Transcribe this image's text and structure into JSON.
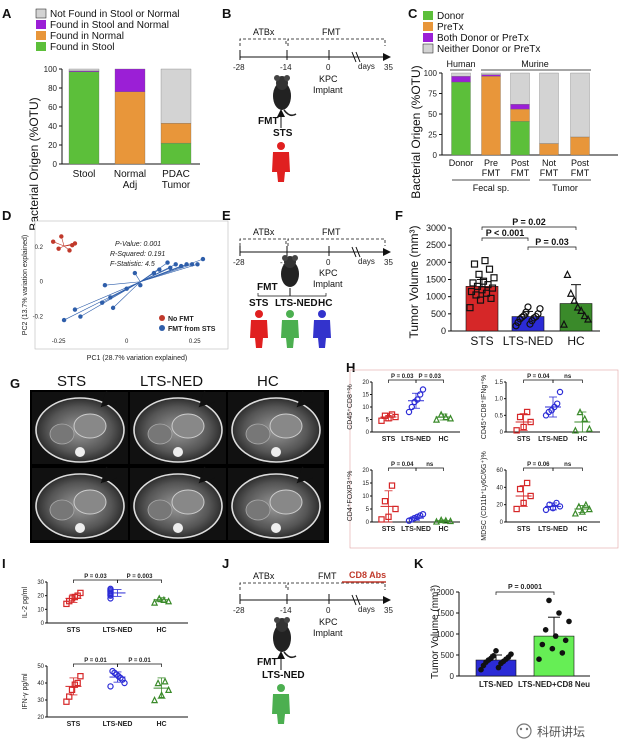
{
  "panel_letters": [
    "A",
    "B",
    "C",
    "D",
    "E",
    "F",
    "G",
    "H",
    "I",
    "J",
    "K"
  ],
  "colors": {
    "gray": "#d3d3d3",
    "purple": "#9b1fd6",
    "orange": "#e8963a",
    "green": "#5cbf3a",
    "red": "#d62728",
    "blue": "#2b2bd6",
    "dgreen": "#3a8a2a",
    "human_red": "#e02020",
    "human_green": "#4caf50",
    "human_blue": "#3333cc"
  },
  "timeline": {
    "atbx": "ATBx",
    "fmt": "FMT",
    "kpc_1": "KPC",
    "kpc_2": "Implant",
    "days": "days",
    "ticks": [
      "-28",
      "-14",
      "0",
      "35"
    ],
    "fmt_label": "FMT",
    "cd8": "CD8 Abs"
  },
  "panel_b": {
    "donor": "STS"
  },
  "panel_e": {
    "donors": [
      "STS",
      "LTS-NED",
      "HC"
    ]
  },
  "panel_j": {
    "donor": "LTS-NED"
  },
  "chart_data": [
    {
      "id": "A",
      "type": "bar",
      "stacked": true,
      "ylabel": "Bacterial Origen (%OTU)",
      "ylim": [
        0,
        100
      ],
      "yticks": [
        "0",
        "20",
        "40",
        "60",
        "80",
        "100"
      ],
      "categories": [
        "Stool",
        "Normal Adj",
        "PDAC Tumor"
      ],
      "category_lines": [
        [
          "Stool"
        ],
        [
          "Normal",
          "Adj"
        ],
        [
          "PDAC",
          "Tumor"
        ]
      ],
      "series": [
        {
          "name": "Found in Stool",
          "color": "#5cbf3a",
          "values": [
            97,
            0,
            22
          ]
        },
        {
          "name": "Found in Normal",
          "color": "#e8963a",
          "values": [
            0,
            76,
            21
          ]
        },
        {
          "name": "Found in Stool and Normal",
          "color": "#9b1fd6",
          "values": [
            1,
            24,
            0
          ]
        },
        {
          "name": "Not Found in Stool or Normal",
          "color": "#d3d3d3",
          "values": [
            2,
            0,
            57
          ]
        }
      ],
      "legend_order": [
        "Not Found in Stool or Normal",
        "Found in Stool and Normal",
        "Found in Normal",
        "Found in Stool"
      ]
    },
    {
      "id": "C",
      "type": "bar",
      "stacked": true,
      "ylabel": "Bacterial Origen (%OTU)",
      "ylim": [
        0,
        100
      ],
      "yticks": [
        "0",
        "25",
        "50",
        "75",
        "100"
      ],
      "categories": [
        "Donor",
        "Pre FMT",
        "Post FMT",
        "Not FMT",
        "Post FMT"
      ],
      "category_lines": [
        [
          "Donor"
        ],
        [
          "Pre",
          "FMT"
        ],
        [
          "Post",
          "FMT"
        ],
        [
          "Not",
          "FMT"
        ],
        [
          "Post",
          "FMT"
        ]
      ],
      "groups": [
        {
          "label": "Human"
        },
        {
          "label": "Murine"
        }
      ],
      "group_labels": [
        "Fecal sp.",
        "Tumor"
      ],
      "series": [
        {
          "name": "Donor",
          "color": "#5cbf3a",
          "values": [
            89,
            0,
            41,
            0,
            0
          ]
        },
        {
          "name": "PreTx",
          "color": "#e8963a",
          "values": [
            0,
            96,
            15,
            14,
            22
          ]
        },
        {
          "name": "Both Donor or PreTx",
          "color": "#9b1fd6",
          "values": [
            7,
            2,
            6,
            0,
            0
          ]
        },
        {
          "name": "Neither Donor or PreTx",
          "color": "#d3d3d3",
          "values": [
            4,
            2,
            38,
            86,
            78
          ]
        }
      ]
    },
    {
      "id": "D",
      "type": "scatter",
      "xlabel": "PC1 (28.7% variation explained)",
      "ylabel": "PC2 (13.7% variation explained)",
      "xlim": [
        -0.3,
        0.35
      ],
      "ylim": [
        -0.3,
        0.32
      ],
      "xticks": [
        "-0.25",
        "0",
        "0.25"
      ],
      "yticks": [
        "0.2",
        "0",
        "-0.2"
      ],
      "stats": [
        "P-Value: 0.001",
        "R-Squared: 0.191",
        "F-Statistic: 4.5"
      ],
      "series": [
        {
          "name": "No FMT",
          "color": "#c0392b",
          "centroid": [
            -0.23,
            0.205
          ],
          "points": [
            [
              -0.27,
              0.23
            ],
            [
              -0.25,
              0.19
            ],
            [
              -0.19,
              0.22
            ],
            [
              -0.24,
              0.26
            ],
            [
              -0.21,
              0.18
            ],
            [
              -0.2,
              0.21
            ]
          ]
        },
        {
          "name": "FMT from STS",
          "color": "#2e5eaa",
          "centroid": [
            0.05,
            0.0
          ],
          "points": [
            [
              -0.23,
              -0.22
            ],
            [
              -0.19,
              -0.16
            ],
            [
              -0.17,
              -0.2
            ],
            [
              -0.09,
              -0.12
            ],
            [
              -0.08,
              -0.02
            ],
            [
              -0.06,
              -0.09
            ],
            [
              0.0,
              -0.04
            ],
            [
              0.03,
              0.05
            ],
            [
              0.1,
              0.05
            ],
            [
              0.16,
              0.08
            ],
            [
              0.18,
              0.1
            ],
            [
              0.2,
              0.09
            ],
            [
              0.22,
              0.1
            ],
            [
              0.24,
              0.1
            ],
            [
              0.26,
              0.1
            ],
            [
              0.28,
              0.13
            ],
            [
              0.15,
              0.11
            ],
            [
              0.12,
              0.07
            ],
            [
              -0.05,
              -0.15
            ],
            [
              0.05,
              -0.02
            ]
          ]
        }
      ]
    },
    {
      "id": "F",
      "type": "bar",
      "ylabel": "Tumor Volume (mm³)",
      "ylim": [
        0,
        3000
      ],
      "yticks": [
        "0",
        "500",
        "1000",
        "1500",
        "2000",
        "2500",
        "3000"
      ],
      "categories": [
        "STS",
        "LTS-NED",
        "HC"
      ],
      "values": [
        1300,
        420,
        800
      ],
      "errors": [
        200,
        150,
        550
      ],
      "colors": [
        "#d62728",
        "#2b2bd6",
        "#3a8a2a"
      ],
      "markers": [
        "square",
        "circle",
        "triangle"
      ],
      "points": [
        [
          680,
          900,
          950,
          1050,
          1100,
          1150,
          1200,
          1250,
          1300,
          1350,
          1400,
          1450,
          1550,
          1650,
          1800,
          1950,
          2050
        ],
        [
          150,
          200,
          250,
          300,
          350,
          380,
          400,
          420,
          450,
          500,
          550,
          650,
          700
        ],
        [
          200,
          350,
          450,
          600,
          700,
          900,
          1100,
          1650
        ]
      ],
      "pvalues": [
        {
          "label": "P = 0.02",
          "from": 0,
          "to": 2
        },
        {
          "label": "P < 0.001",
          "from": 0,
          "to": 1
        },
        {
          "label": "P = 0.03",
          "from": 1,
          "to": 2
        }
      ]
    },
    {
      "id": "H1",
      "type": "scatter",
      "ylabel": "CD45⁺CD8⁺%",
      "ylim": [
        0,
        20
      ],
      "yticks": [
        "0",
        "5",
        "10",
        "15",
        "20"
      ],
      "categories": [
        "STS",
        "LTS-NED",
        "HC"
      ],
      "colors": [
        "#d62728",
        "#2b2bd6",
        "#3a8a2a"
      ],
      "markers": [
        "square",
        "circle",
        "triangle"
      ],
      "points": [
        [
          4.5,
          5.5,
          6,
          6.5,
          7
        ],
        [
          8,
          10,
          12,
          13,
          15,
          17
        ],
        [
          5,
          5.5,
          6,
          7
        ]
      ],
      "means": [
        6,
        12.5,
        6
      ],
      "sds": [
        1.5,
        3,
        1.2
      ],
      "pvalues": [
        {
          "label": "P = 0.03",
          "from": 0,
          "to": 1
        },
        {
          "label": "P = 0.03",
          "from": 1,
          "to": 2
        }
      ]
    },
    {
      "id": "H2",
      "type": "scatter",
      "ylabel": "CD45⁺CD8⁺IFNg⁺%",
      "ylim": [
        0,
        1.5
      ],
      "yticks": [
        "0",
        "0.5",
        "1.0",
        "1.5"
      ],
      "categories": [
        "STS",
        "LTS-NED",
        "HC"
      ],
      "colors": [
        "#d62728",
        "#2b2bd6",
        "#3a8a2a"
      ],
      "markers": [
        "square",
        "circle",
        "triangle"
      ],
      "points": [
        [
          0.05,
          0.15,
          0.3,
          0.45,
          0.6
        ],
        [
          0.5,
          0.6,
          0.65,
          0.75,
          0.85,
          1.2
        ],
        [
          0.05,
          0.1,
          0.4,
          0.6
        ]
      ],
      "means": [
        0.3,
        0.75,
        0.3
      ],
      "sds": [
        0.25,
        0.3,
        0.3
      ],
      "pvalues": [
        {
          "label": "P = 0.04",
          "from": 0,
          "to": 1
        },
        {
          "label": "ns",
          "from": 1,
          "to": 2
        }
      ]
    },
    {
      "id": "H3",
      "type": "scatter",
      "ylabel": "CD4⁺FOXP3⁺%",
      "ylim": [
        0,
        20
      ],
      "yticks": [
        "0",
        "5",
        "10",
        "15",
        "20"
      ],
      "categories": [
        "STS",
        "LTS-NED",
        "HC"
      ],
      "colors": [
        "#d62728",
        "#2b2bd6",
        "#3a8a2a"
      ],
      "markers": [
        "square",
        "circle",
        "triangle"
      ],
      "points": [
        [
          1,
          2,
          5,
          8,
          14
        ],
        [
          0.5,
          1,
          1.5,
          2,
          2.5,
          3
        ],
        [
          0.2,
          0.4,
          0.6,
          0.8
        ]
      ],
      "means": [
        6,
        1.5,
        0.5
      ],
      "sds": [
        6,
        0.8,
        0.3
      ],
      "pvalues": [
        {
          "label": "P = 0.04",
          "from": 0,
          "to": 1
        },
        {
          "label": "ns",
          "from": 1,
          "to": 2
        }
      ]
    },
    {
      "id": "H4",
      "type": "scatter",
      "ylabel": "MDSC (CD11b⁺Ly6C/6G⁺)%",
      "ylim": [
        0,
        60
      ],
      "yticks": [
        "0",
        "20",
        "40",
        "60"
      ],
      "categories": [
        "STS",
        "LTS-NED",
        "HC"
      ],
      "colors": [
        "#d62728",
        "#2b2bd6",
        "#3a8a2a"
      ],
      "markers": [
        "square",
        "circle",
        "triangle"
      ],
      "points": [
        [
          15,
          22,
          30,
          38,
          45
        ],
        [
          14,
          16,
          18,
          20,
          22
        ],
        [
          10,
          12,
          15,
          18,
          20
        ]
      ],
      "means": [
        30,
        18,
        15
      ],
      "sds": [
        12,
        4,
        4
      ],
      "pvalues": [
        {
          "label": "P = 0.06",
          "from": 0,
          "to": 1
        },
        {
          "label": "ns",
          "from": 1,
          "to": 2
        }
      ]
    },
    {
      "id": "I1",
      "type": "scatter",
      "ylabel": "IL-2 pg/ml",
      "ylim": [
        0,
        30
      ],
      "yticks": [
        "0",
        "10",
        "20",
        "30"
      ],
      "categories": [
        "STS",
        "LTS-NED",
        "HC"
      ],
      "colors": [
        "#d62728",
        "#2b2bd6",
        "#3a8a2a"
      ],
      "markers": [
        "square",
        "circle",
        "triangle"
      ],
      "points": [
        [
          14,
          16,
          18,
          19,
          20,
          22
        ],
        [
          18,
          20,
          21,
          22,
          23,
          24,
          25
        ],
        [
          15,
          16,
          17,
          18
        ]
      ],
      "means": [
        18,
        22,
        17
      ],
      "sds": [
        3,
        2.5,
        1.5
      ],
      "pvalues": [
        {
          "label": "P = 0.03",
          "from": 0,
          "to": 1
        },
        {
          "label": "P = 0.003",
          "from": 1,
          "to": 2
        }
      ]
    },
    {
      "id": "I2",
      "type": "scatter",
      "ylabel": "IFN-γ pg/ml",
      "ylim": [
        20,
        50
      ],
      "yticks": [
        "20",
        "30",
        "40",
        "50"
      ],
      "categories": [
        "STS",
        "LTS-NED",
        "HC"
      ],
      "colors": [
        "#d62728",
        "#2b2bd6",
        "#3a8a2a"
      ],
      "markers": [
        "square",
        "circle",
        "triangle"
      ],
      "points": [
        [
          29,
          32,
          36,
          39,
          40,
          44
        ],
        [
          38,
          40,
          42,
          43,
          44,
          45,
          46,
          47
        ],
        [
          30,
          33,
          36,
          40,
          41
        ]
      ],
      "means": [
        38,
        43.5,
        37
      ],
      "sds": [
        5,
        3,
        6
      ],
      "pvalues": [
        {
          "label": "P = 0.01",
          "from": 0,
          "to": 1
        },
        {
          "label": "P = 0.01",
          "from": 1,
          "to": 2
        }
      ]
    },
    {
      "id": "K",
      "type": "bar",
      "ylabel": "Tumor Volume (mm³)",
      "ylim": [
        0,
        2000
      ],
      "yticks": [
        "0",
        "500",
        "1000",
        "1500",
        "2000"
      ],
      "categories": [
        "LTS-NED",
        "LTS-NED+CD8 Neu"
      ],
      "values": [
        380,
        950
      ],
      "errors": [
        120,
        450
      ],
      "colors": [
        "#2b2bd6",
        "#66ee55"
      ],
      "points": [
        [
          150,
          200,
          250,
          300,
          330,
          350,
          380,
          400,
          420,
          450,
          480,
          520,
          600
        ],
        [
          400,
          550,
          650,
          750,
          850,
          950,
          1100,
          1300,
          1500,
          1800
        ]
      ],
      "pvalues": [
        {
          "label": "P = 0.0001",
          "from": 0,
          "to": 1
        }
      ]
    }
  ],
  "panel_g": {
    "labels": [
      "STS",
      "LTS-NED",
      "HC"
    ]
  },
  "watermark": "科研讲坛"
}
